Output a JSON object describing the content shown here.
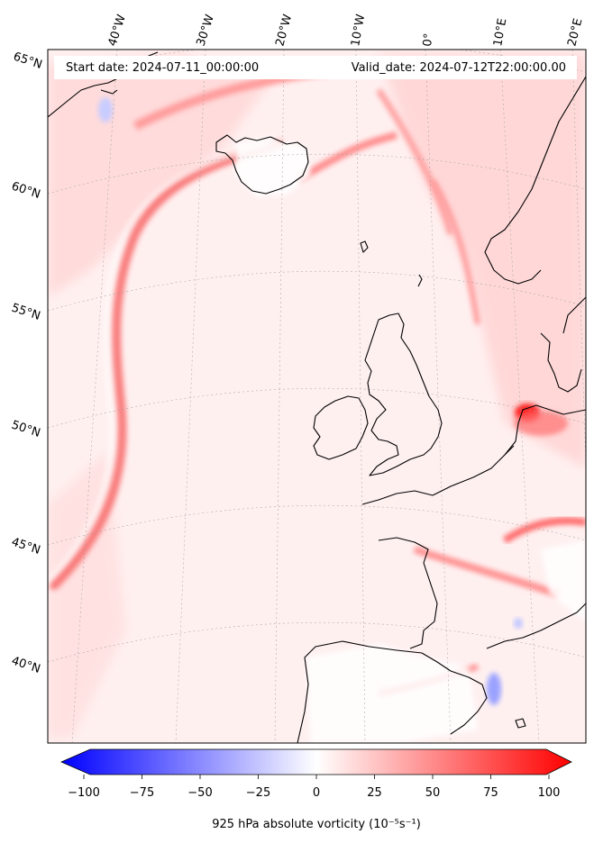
{
  "header": {
    "start_label": "Start date: 2024-07-11_00:00:00",
    "valid_label": "Valid_date: 2024-07-12T22:00:00.00"
  },
  "map": {
    "lon_labels": [
      "40°W",
      "30°W",
      "20°W",
      "10°W",
      "0°",
      "10°E",
      "20°E"
    ],
    "lat_labels": [
      "65°N",
      "60°N",
      "55°N",
      "50°N",
      "45°N",
      "40°N"
    ],
    "background_color": "#fff0f0",
    "land_color": "#ffffff",
    "coast_color": "#000000"
  },
  "colorbar": {
    "min": -100,
    "max": 100,
    "tick_labels": [
      "−100",
      "−75",
      "−50",
      "−25",
      "0",
      "25",
      "50",
      "75",
      "100"
    ],
    "label": "925 hPa absolute vorticity (10⁻⁵s⁻¹)",
    "colors": {
      "low": "#0000ff",
      "mid": "#ffffff",
      "high": "#ff0000"
    }
  }
}
